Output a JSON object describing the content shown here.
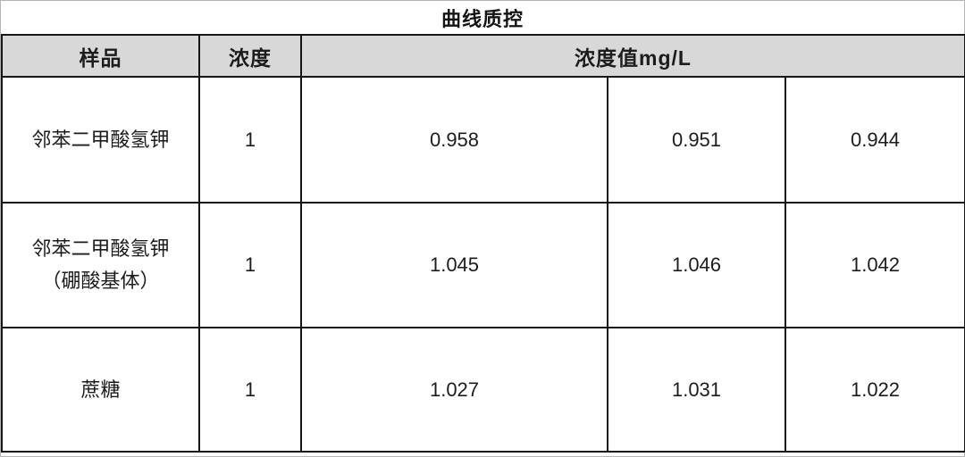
{
  "page_title": "曲线质控",
  "table": {
    "header": {
      "sample": "样品",
      "concentration": "浓度",
      "value": "浓度值mg/L"
    },
    "rows": [
      {
        "sample_line1": "邻苯二甲酸氢钾",
        "sample_line2": "",
        "concentration": "1",
        "values": [
          "0.958",
          "0.951",
          "0.944"
        ]
      },
      {
        "sample_line1": "邻苯二甲酸氢钾",
        "sample_line2": "（硼酸基体）",
        "concentration": "1",
        "values": [
          "1.045",
          "1.046",
          "1.042"
        ]
      },
      {
        "sample_line1": "蔗糖",
        "sample_line2": "",
        "concentration": "1",
        "values": [
          "1.027",
          "1.031",
          "1.022"
        ]
      }
    ]
  },
  "colors": {
    "header_bg": "#d8d8d8",
    "grid_border": "#161616",
    "outer_frame": "#b4b4b4",
    "text": "#1c1c1c"
  },
  "chart_data": {
    "type": "table",
    "title": "曲线质控",
    "columns": [
      "样品",
      "浓度",
      "浓度值mg/L",
      "浓度值mg/L",
      "浓度值mg/L"
    ],
    "rows": [
      [
        "邻苯二甲酸氢钾",
        1,
        0.958,
        0.951,
        0.944
      ],
      [
        "邻苯二甲酸氢钾（硼酸基体）",
        1,
        1.045,
        1.046,
        1.042
      ],
      [
        "蔗糖",
        1,
        1.027,
        1.031,
        1.022
      ]
    ]
  }
}
